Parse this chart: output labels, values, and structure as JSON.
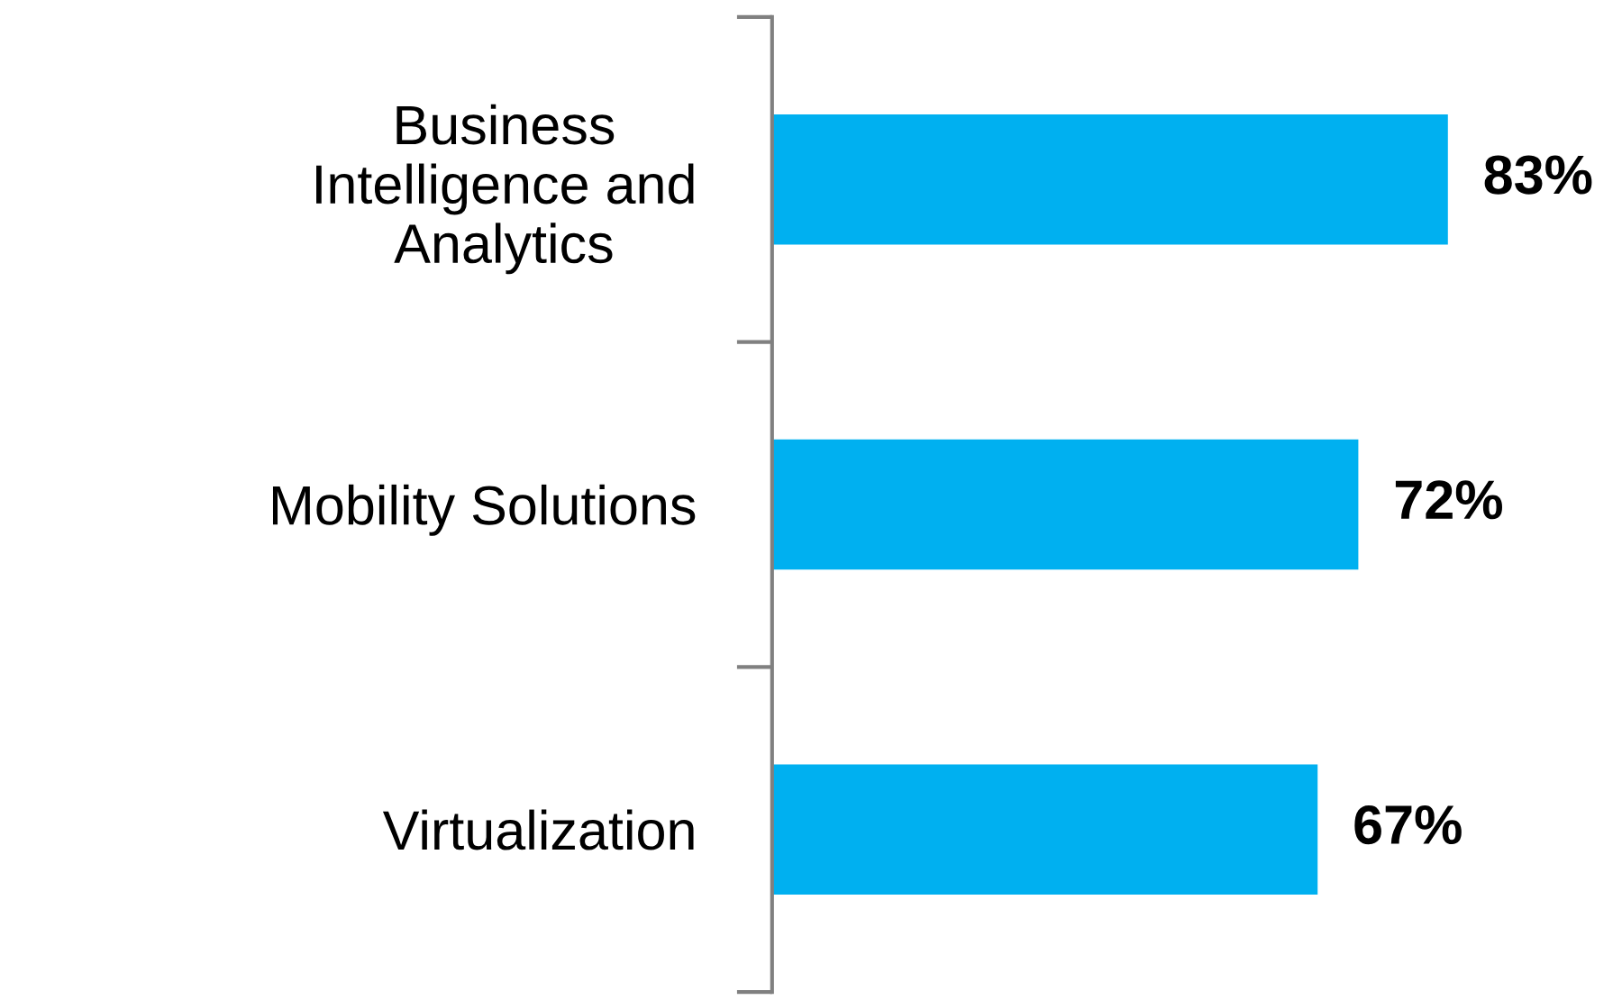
{
  "chart_data": {
    "type": "bar",
    "orientation": "horizontal",
    "categories": [
      "Business\nIntelligence and\nAnalytics",
      "Mobility Solutions",
      "Virtualization"
    ],
    "values": [
      83,
      72,
      67
    ],
    "value_labels": [
      "83%",
      "72%",
      "67%"
    ],
    "color": "#00b0f0",
    "grid": false,
    "legend": false
  }
}
